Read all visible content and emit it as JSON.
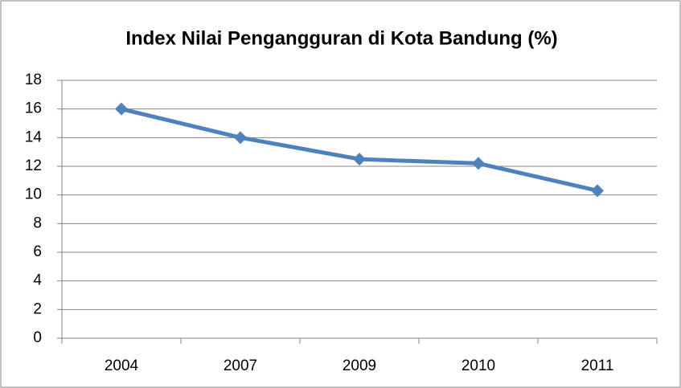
{
  "chart_data": {
    "type": "line",
    "title": "Index Nilai Pengangguran di Kota Bandung (%)",
    "categories": [
      "2004",
      "2007",
      "2009",
      "2010",
      "2011"
    ],
    "values": [
      16,
      14,
      12.5,
      12.2,
      10.3
    ],
    "color": "#4f81bd",
    "ylim": [
      0,
      18
    ],
    "yticks": [
      0,
      2,
      4,
      6,
      8,
      10,
      12,
      14,
      16,
      18
    ],
    "grid": true
  }
}
